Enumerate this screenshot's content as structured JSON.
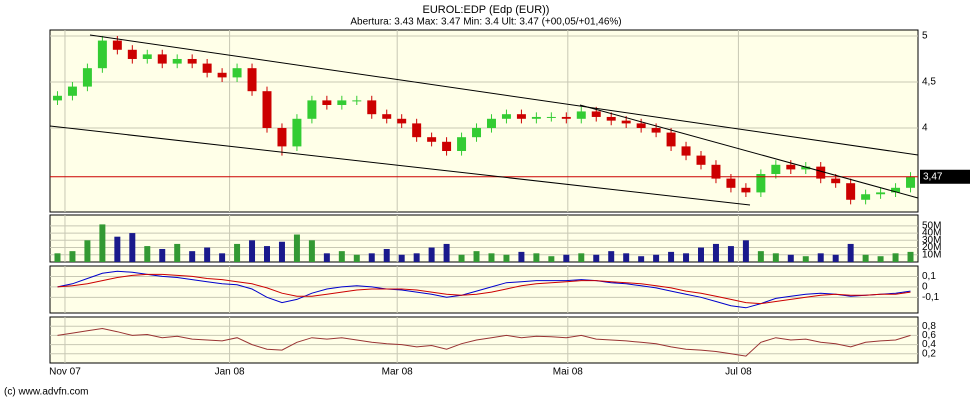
{
  "chart_data": {
    "type": "candlestick",
    "title": "EUROL:EDP (Edp (EUR))",
    "subtitle": "Abertura: 3.43 Max: 3.47 Min: 3.4 Ult: 3.47 (+00,05/+01,46%)",
    "footer": "(c) www.advfn.com",
    "xlim": [
      -0.5,
      57.5
    ],
    "xticks": [
      {
        "value": 0.5,
        "label": "Nov 07"
      },
      {
        "value": 11.5,
        "label": "Jan 08"
      },
      {
        "value": 22.7,
        "label": "Mar 08"
      },
      {
        "value": 34.1,
        "label": "Mai 08"
      },
      {
        "value": 45.5,
        "label": "Jul 08"
      }
    ],
    "grid": true,
    "price": {
      "ylim": [
        3.087,
        5.065
      ],
      "yticks": [
        {
          "value": 4,
          "label": "4"
        },
        {
          "value": 4.5,
          "label": "4,5"
        },
        {
          "value": 5,
          "label": "5"
        }
      ],
      "up_color": "#33cc33",
      "down_color": "#cc0000",
      "last": {
        "value": 3.47,
        "label": "3,47"
      },
      "open": [
        4.3,
        4.35,
        4.45,
        4.65,
        4.95,
        4.85,
        4.75,
        4.8,
        4.7,
        4.75,
        4.7,
        4.6,
        4.55,
        4.65,
        4.4,
        4.0,
        3.8,
        4.1,
        4.3,
        4.25,
        4.3,
        4.3,
        4.15,
        4.1,
        4.05,
        3.9,
        3.85,
        3.75,
        3.9,
        4.0,
        4.1,
        4.15,
        4.1,
        4.12,
        4.12,
        4.1,
        4.18,
        4.12,
        4.08,
        4.05,
        4.0,
        3.95,
        3.8,
        3.7,
        3.6,
        3.45,
        3.35,
        3.3,
        3.5,
        3.6,
        3.55,
        3.58,
        3.45,
        3.4,
        3.22,
        3.28,
        3.3,
        3.35
      ],
      "high": [
        4.4,
        4.5,
        4.7,
        5.0,
        5.0,
        4.9,
        4.85,
        4.85,
        4.8,
        4.8,
        4.75,
        4.65,
        4.7,
        4.7,
        4.45,
        4.05,
        4.15,
        4.35,
        4.35,
        4.35,
        4.35,
        4.35,
        4.2,
        4.15,
        4.1,
        3.95,
        3.9,
        3.95,
        4.05,
        4.15,
        4.2,
        4.2,
        4.17,
        4.17,
        4.17,
        4.23,
        4.23,
        4.17,
        4.13,
        4.1,
        4.05,
        4.0,
        3.85,
        3.75,
        3.65,
        3.5,
        3.4,
        3.55,
        3.65,
        3.65,
        3.63,
        3.63,
        3.5,
        3.45,
        3.33,
        3.35,
        3.4,
        3.52
      ],
      "low": [
        4.25,
        4.3,
        4.4,
        4.6,
        4.8,
        4.7,
        4.7,
        4.65,
        4.65,
        4.65,
        4.55,
        4.5,
        4.5,
        4.35,
        3.95,
        3.7,
        3.75,
        4.05,
        4.2,
        4.2,
        4.25,
        4.1,
        4.05,
        4.0,
        3.85,
        3.8,
        3.7,
        3.7,
        3.85,
        3.95,
        4.05,
        4.05,
        4.05,
        4.07,
        4.05,
        4.05,
        4.07,
        4.03,
        4.0,
        3.95,
        3.9,
        3.75,
        3.65,
        3.55,
        3.4,
        3.3,
        3.25,
        3.25,
        3.45,
        3.5,
        3.5,
        3.4,
        3.35,
        3.17,
        3.17,
        3.23,
        3.25,
        3.3
      ],
      "close": [
        4.35,
        4.45,
        4.65,
        4.95,
        4.85,
        4.75,
        4.8,
        4.7,
        4.75,
        4.7,
        4.6,
        4.55,
        4.65,
        4.4,
        4.0,
        3.8,
        4.1,
        4.3,
        4.25,
        4.3,
        4.3,
        4.15,
        4.1,
        4.05,
        3.9,
        3.85,
        3.75,
        3.9,
        4.0,
        4.1,
        4.15,
        4.1,
        4.12,
        4.12,
        4.1,
        4.18,
        4.12,
        4.08,
        4.05,
        4.0,
        3.95,
        3.8,
        3.7,
        3.6,
        3.45,
        3.35,
        3.3,
        3.5,
        3.6,
        3.55,
        3.58,
        3.45,
        3.4,
        3.22,
        3.28,
        3.3,
        3.35,
        3.47
      ]
    },
    "volume": {
      "ylim": [
        0,
        65000000
      ],
      "yticks": [
        {
          "value": 10000000,
          "label": "10M"
        },
        {
          "value": 20000000,
          "label": "20M"
        },
        {
          "value": 30000000,
          "label": "30M"
        },
        {
          "value": 40000000,
          "label": "40M"
        },
        {
          "value": 50000000,
          "label": "50M"
        }
      ],
      "values": [
        12000000,
        15000000,
        30000000,
        52000000,
        35000000,
        40000000,
        22000000,
        18000000,
        25000000,
        15000000,
        20000000,
        12000000,
        25000000,
        30000000,
        22000000,
        28000000,
        38000000,
        30000000,
        12000000,
        15000000,
        10000000,
        12000000,
        18000000,
        10000000,
        12000000,
        20000000,
        25000000,
        10000000,
        15000000,
        12000000,
        10000000,
        14000000,
        12000000,
        8000000,
        10000000,
        12000000,
        10000000,
        15000000,
        12000000,
        8000000,
        10000000,
        14000000,
        12000000,
        20000000,
        25000000,
        22000000,
        30000000,
        15000000,
        12000000,
        10000000,
        8000000,
        12000000,
        10000000,
        25000000,
        10000000,
        8000000,
        12000000,
        14000000
      ]
    },
    "macd": {
      "ylim": [
        -0.25,
        0.2
      ],
      "yticks": [
        {
          "value": -0.1,
          "label": "-0,1"
        },
        0,
        {
          "value": 0.1,
          "label": "0,1"
        }
      ],
      "series": [
        {
          "color": "#0000cc",
          "values": [
            0.0,
            0.03,
            0.08,
            0.13,
            0.15,
            0.14,
            0.12,
            0.1,
            0.09,
            0.07,
            0.05,
            0.03,
            0.02,
            -0.02,
            -0.1,
            -0.15,
            -0.12,
            -0.06,
            -0.02,
            0.0,
            0.01,
            0.0,
            -0.02,
            -0.03,
            -0.05,
            -0.07,
            -0.1,
            -0.08,
            -0.04,
            0.0,
            0.04,
            0.05,
            0.06,
            0.06,
            0.06,
            0.07,
            0.06,
            0.04,
            0.03,
            0.01,
            -0.01,
            -0.04,
            -0.07,
            -0.1,
            -0.14,
            -0.18,
            -0.2,
            -0.16,
            -0.11,
            -0.09,
            -0.07,
            -0.06,
            -0.07,
            -0.09,
            -0.08,
            -0.07,
            -0.06,
            -0.04
          ]
        },
        {
          "color": "#cc0000",
          "values": [
            0.0,
            0.01,
            0.03,
            0.06,
            0.09,
            0.11,
            0.12,
            0.12,
            0.11,
            0.1,
            0.08,
            0.07,
            0.05,
            0.03,
            -0.01,
            -0.06,
            -0.09,
            -0.09,
            -0.07,
            -0.05,
            -0.03,
            -0.02,
            -0.02,
            -0.02,
            -0.03,
            -0.05,
            -0.07,
            -0.08,
            -0.07,
            -0.05,
            -0.02,
            0.01,
            0.03,
            0.04,
            0.05,
            0.06,
            0.06,
            0.05,
            0.04,
            0.03,
            0.01,
            -0.01,
            -0.04,
            -0.06,
            -0.09,
            -0.12,
            -0.15,
            -0.16,
            -0.14,
            -0.12,
            -0.1,
            -0.08,
            -0.07,
            -0.08,
            -0.08,
            -0.07,
            -0.07,
            -0.05
          ]
        }
      ]
    },
    "oscillator": {
      "ylim": [
        0,
        1
      ],
      "yticks": [
        {
          "value": 0.2,
          "label": "0,2"
        },
        {
          "value": 0.4,
          "label": "0,4"
        },
        {
          "value": 0.6,
          "label": "0,6"
        },
        {
          "value": 0.8,
          "label": "0,8"
        }
      ],
      "color": "#993333",
      "values": [
        0.6,
        0.65,
        0.7,
        0.75,
        0.68,
        0.6,
        0.62,
        0.55,
        0.58,
        0.52,
        0.5,
        0.48,
        0.55,
        0.4,
        0.3,
        0.28,
        0.45,
        0.55,
        0.52,
        0.55,
        0.5,
        0.45,
        0.42,
        0.4,
        0.35,
        0.38,
        0.3,
        0.42,
        0.5,
        0.55,
        0.6,
        0.55,
        0.58,
        0.57,
        0.55,
        0.6,
        0.52,
        0.5,
        0.48,
        0.45,
        0.42,
        0.35,
        0.3,
        0.28,
        0.25,
        0.2,
        0.15,
        0.45,
        0.55,
        0.5,
        0.52,
        0.45,
        0.42,
        0.35,
        0.45,
        0.48,
        0.5,
        0.6
      ]
    }
  }
}
